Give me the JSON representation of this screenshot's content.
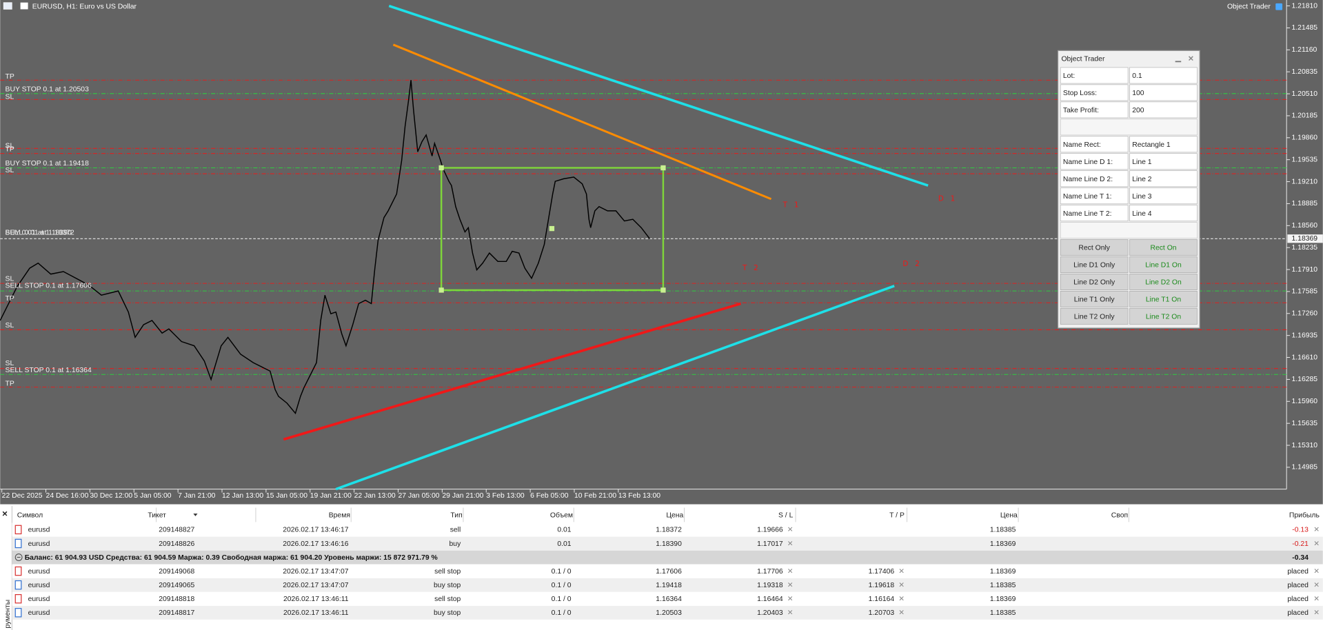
{
  "header": {
    "symbol_title": "EURUSD, H1:  Euro vs US Dollar",
    "expert_name": "Object Trader"
  },
  "chart": {
    "price_labels": [
      "1.21810",
      "1.21485",
      "1.21160",
      "1.20835",
      "1.20510",
      "1.20185",
      "1.19860",
      "1.19535",
      "1.19210",
      "1.18885",
      "1.18560",
      "1.18235",
      "1.17910",
      "1.17585",
      "1.17260",
      "1.16935",
      "1.16610",
      "1.16285",
      "1.15960",
      "1.15635",
      "1.15310",
      "1.14985"
    ],
    "current_price": "1.18369",
    "time_labels": [
      "22 Dec 2025",
      "24 Dec 16:00",
      "30 Dec 12:00",
      "5 Jan 05:00",
      "7 Jan 21:00",
      "12 Jan 13:00",
      "15 Jan 05:00",
      "19 Jan 21:00",
      "22 Jan 13:00",
      "27 Jan 05:00",
      "29 Jan 21:00",
      "3 Feb 13:00",
      "6 Feb 05:00",
      "10 Feb 21:00",
      "13 Feb 13:00"
    ],
    "level_labels": [
      "TP",
      "BUY STOP 0.1 at 1.20503",
      "SL",
      "SL",
      "TP",
      "BUY STOP 0.1 at 1.19418",
      "SL",
      "BUY 0.01 at 1.18390",
      "SELL 0.01 at 1.18372",
      "SL",
      "SELL STOP 0.1 at 1.17606",
      "TP",
      "SL",
      "SL",
      "SELL STOP 0.1 at 1.16364",
      "TP"
    ],
    "drawn_labels": [
      "T1",
      "D1",
      "T2",
      "D2"
    ]
  },
  "panel": {
    "title": "Object Trader",
    "fields": [
      {
        "label": "Lot:",
        "value": "0.1"
      },
      {
        "label": "Stop Loss:",
        "value": "100"
      },
      {
        "label": "Take Profit:",
        "value": "200"
      }
    ],
    "names": [
      {
        "label": "Name Rect:",
        "value": "Rectangle 1"
      },
      {
        "label": "Name Line D 1:",
        "value": "Line 1"
      },
      {
        "label": "Name Line D 2:",
        "value": "Line 2"
      },
      {
        "label": "Name Line T 1:",
        "value": "Line 3"
      },
      {
        "label": "Name Line T 2:",
        "value": "Line 4"
      }
    ],
    "buttons": [
      {
        "only": "Rect Only",
        "on": "Rect On"
      },
      {
        "only": "Line D1 Only",
        "on": "Line D1 On"
      },
      {
        "only": "Line D2 Only",
        "on": "Line D2 On"
      },
      {
        "only": "Line T1 Only",
        "on": "Line T1 On"
      },
      {
        "only": "Line T2 Only",
        "on": "Line T2 On"
      }
    ]
  },
  "table": {
    "columns": [
      {
        "key": "symbol",
        "label": "Символ"
      },
      {
        "key": "ticket",
        "label": "Тикет"
      },
      {
        "key": "time",
        "label": "Время"
      },
      {
        "key": "type",
        "label": "Тип"
      },
      {
        "key": "volume",
        "label": "Объем"
      },
      {
        "key": "price",
        "label": "Цена"
      },
      {
        "key": "sl",
        "label": "S / L"
      },
      {
        "key": "tp",
        "label": "T / P"
      },
      {
        "key": "current",
        "label": "Цена"
      },
      {
        "key": "swap",
        "label": "Своп"
      },
      {
        "key": "profit",
        "label": "Прибыль"
      }
    ],
    "positions": [
      {
        "symbol": "eurusd",
        "ticket": "209148827",
        "time": "2026.02.17 13:46:17",
        "type": "sell",
        "volume": "0.01",
        "price": "1.18372",
        "sl": "1.19666",
        "current": "1.18385",
        "profit": "-0.13"
      },
      {
        "symbol": "eurusd",
        "ticket": "209148826",
        "time": "2026.02.17 13:46:16",
        "type": "buy",
        "volume": "0.01",
        "price": "1.18390",
        "sl": "1.17017",
        "current": "1.18369",
        "profit": "-0.21"
      }
    ],
    "balance": {
      "text": "Баланс: 61 904.93 USD  Средства: 61 904.59  Маржа: 0.39  Свободная маржа: 61 904.20  Уровень маржи: 15 872 971.79 %",
      "profit": "-0.34"
    },
    "orders": [
      {
        "symbol": "eurusd",
        "ticket": "209149068",
        "time": "2026.02.17 13:47:07",
        "type": "sell stop",
        "volume": "0.1 / 0",
        "price": "1.17606",
        "sl": "1.17706",
        "tp": "1.17406",
        "current": "1.18369",
        "profit": "placed"
      },
      {
        "symbol": "eurusd",
        "ticket": "209149065",
        "time": "2026.02.17 13:47:07",
        "type": "buy stop",
        "volume": "0.1 / 0",
        "price": "1.19418",
        "sl": "1.19318",
        "tp": "1.19618",
        "current": "1.18385",
        "profit": "placed"
      },
      {
        "symbol": "eurusd",
        "ticket": "209148818",
        "time": "2026.02.17 13:46:11",
        "type": "sell stop",
        "volume": "0.1 / 0",
        "price": "1.16364",
        "sl": "1.16464",
        "tp": "1.16164",
        "current": "1.18369",
        "profit": "placed"
      },
      {
        "symbol": "eurusd",
        "ticket": "209148817",
        "time": "2026.02.17 13:46:11",
        "type": "buy stop",
        "volume": "0.1 / 0",
        "price": "1.20503",
        "sl": "1.20403",
        "tp": "1.20703",
        "current": "1.18385",
        "profit": "placed"
      }
    ],
    "sidebar_label": "рументы"
  }
}
